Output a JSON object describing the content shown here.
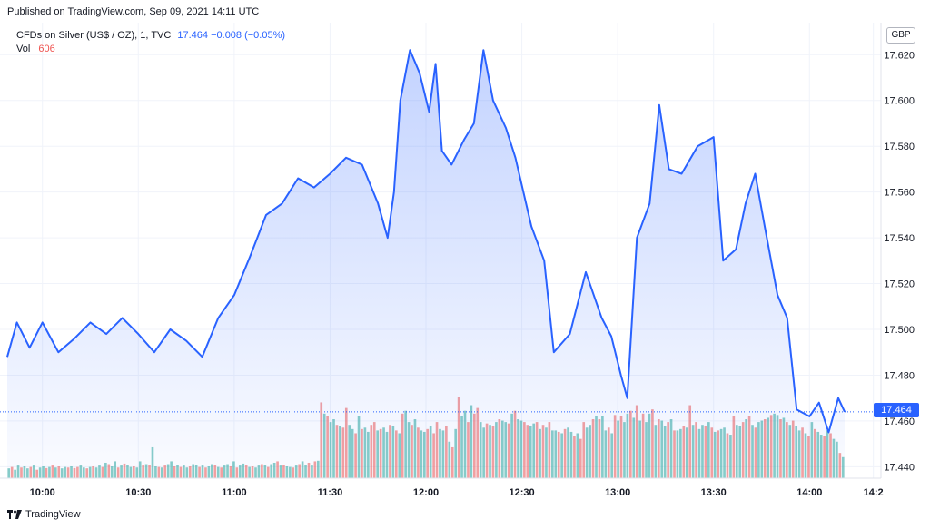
{
  "header": {
    "published": "Published on TradingView.com, Sep 09, 2021 14:11 UTC"
  },
  "legend": {
    "symbol": "CFDs on Silver (US$ / OZ), 1, TVC",
    "values": "17.464  −0.008 (−0.05%)",
    "vol_label": "Vol",
    "vol_value": "606"
  },
  "currency_badge": "GBP",
  "last_price_label": "17.464",
  "footer": {
    "brand": "TradingView"
  },
  "colors": {
    "line": "#2962ff",
    "area": "#2962ff",
    "vol_up": "#26a69a",
    "vol_down": "#ef5350",
    "grid": "#f0f3fa"
  },
  "chart_data": {
    "type": "area",
    "y_ticks": [
      "17.620",
      "17.600",
      "17.580",
      "17.560",
      "17.540",
      "17.520",
      "17.500",
      "17.480",
      "17.460",
      "17.440"
    ],
    "x_ticks": [
      "10:00",
      "10:30",
      "11:00",
      "11:30",
      "12:00",
      "12:30",
      "13:00",
      "13:30",
      "14:00",
      "14:2"
    ],
    "ylim": [
      17.435,
      17.632
    ],
    "last_price": 17.464,
    "series": [
      {
        "x": [
          "09:49",
          "09:52",
          "09:56",
          "10:00",
          "10:05",
          "10:10",
          "10:15",
          "10:20",
          "10:25",
          "10:30",
          "10:35",
          "10:40",
          "10:45",
          "10:50",
          "10:55",
          "11:00",
          "11:05",
          "11:10",
          "11:15",
          "11:20",
          "11:25",
          "11:30",
          "11:35",
          "11:40",
          "11:45",
          "11:48",
          "11:50",
          "11:52",
          "11:55",
          "11:58",
          "12:01",
          "12:03",
          "12:05",
          "12:08",
          "12:12",
          "12:15",
          "12:18",
          "12:21",
          "12:25",
          "12:28",
          "12:33",
          "12:37",
          "12:40",
          "12:45",
          "12:50",
          "12:55",
          "12:58",
          "13:01",
          "13:03",
          "13:06",
          "13:10",
          "13:13",
          "13:16",
          "13:20",
          "13:25",
          "13:30",
          "13:33",
          "13:37",
          "13:40",
          "13:43",
          "13:46",
          "13:50",
          "13:53",
          "13:56",
          "14:00",
          "14:03",
          "14:06",
          "14:09",
          "14:11"
        ],
        "values": [
          17.488,
          17.503,
          17.492,
          17.503,
          17.49,
          17.496,
          17.503,
          17.498,
          17.505,
          17.498,
          17.49,
          17.5,
          17.495,
          17.488,
          17.505,
          17.515,
          17.532,
          17.55,
          17.555,
          17.566,
          17.562,
          17.568,
          17.575,
          17.572,
          17.555,
          17.54,
          17.56,
          17.6,
          17.622,
          17.612,
          17.595,
          17.616,
          17.578,
          17.572,
          17.583,
          17.59,
          17.622,
          17.6,
          17.588,
          17.575,
          17.545,
          17.53,
          17.49,
          17.498,
          17.525,
          17.505,
          17.497,
          17.48,
          17.47,
          17.54,
          17.555,
          17.598,
          17.57,
          17.568,
          17.58,
          17.584,
          17.53,
          17.535,
          17.555,
          17.568,
          17.545,
          17.515,
          17.505,
          17.465,
          17.462,
          17.468,
          17.455,
          17.47,
          17.464
        ]
      }
    ],
    "volume": {
      "label": "Vol",
      "scale_max": 420,
      "values": [
        35,
        40,
        30,
        45,
        38,
        42,
        35,
        40,
        45,
        30,
        38,
        42,
        36,
        40,
        45,
        38,
        42,
        35,
        40,
        38,
        42,
        36,
        40,
        45,
        38,
        35,
        40,
        42,
        38,
        45,
        40,
        55,
        50,
        42,
        60,
        38,
        45,
        52,
        48,
        40,
        42,
        38,
        60,
        45,
        50,
        48,
        110,
        42,
        40,
        38,
        45,
        50,
        60,
        42,
        48,
        40,
        45,
        38,
        42,
        50,
        48,
        40,
        45,
        38,
        42,
        50,
        48,
        40,
        38,
        45,
        50,
        42,
        60,
        38,
        45,
        52,
        48,
        40,
        42,
        38,
        45,
        50,
        48,
        40,
        50,
        55,
        60,
        45,
        48,
        42,
        40,
        38,
        45,
        50,
        60,
        48,
        55,
        45,
        60,
        62,
        270,
        230,
        220,
        200,
        210,
        190,
        185,
        180,
        250,
        190,
        175,
        160,
        220,
        175,
        180,
        165,
        190,
        200,
        170,
        175,
        180,
        165,
        190,
        185,
        170,
        160,
        230,
        240,
        200,
        190,
        210,
        180,
        170,
        165,
        175,
        185,
        160,
        200,
        175,
        170,
        185,
        130,
        110,
        175,
        290,
        220,
        240,
        200,
        260,
        230,
        250,
        200,
        180,
        195,
        190,
        185,
        200,
        210,
        205,
        200,
        195,
        230,
        240,
        210,
        205,
        200,
        190,
        185,
        195,
        200,
        175,
        190,
        180,
        200,
        170,
        170,
        165,
        160,
        175,
        180,
        165,
        150,
        160,
        140,
        200,
        180,
        190,
        210,
        220,
        210,
        220,
        170,
        180,
        160,
        225,
        205,
        220,
        200,
        230,
        240,
        215,
        260,
        205,
        230,
        200,
        230,
        245,
        190,
        210,
        205,
        185,
        200,
        210,
        170,
        170,
        175,
        185,
        180,
        260,
        190,
        200,
        175,
        190,
        185,
        200,
        180,
        165,
        170,
        175,
        180,
        160,
        155,
        220,
        190,
        185,
        200,
        210,
        220,
        190,
        180,
        200,
        205,
        210,
        215,
        225,
        230,
        225,
        210,
        215,
        200,
        190,
        205,
        185,
        170,
        180,
        160,
        150,
        200,
        175,
        165,
        155,
        150,
        170,
        160,
        140,
        130,
        90,
        75
      ],
      "up": [
        1,
        0,
        1,
        1,
        0,
        1,
        1,
        0,
        1,
        0,
        1,
        1,
        0,
        1,
        0,
        1,
        0,
        1,
        1,
        0,
        1,
        0,
        0,
        1,
        1,
        0,
        1,
        0,
        1,
        1,
        0,
        1,
        0,
        1,
        1,
        0,
        1,
        0,
        1,
        1,
        0,
        1,
        1,
        0,
        1,
        0,
        1,
        1,
        0,
        1,
        0,
        1,
        1,
        0,
        1,
        0,
        1,
        1,
        0,
        1,
        1,
        0,
        1,
        0,
        1,
        1,
        0,
        1,
        0,
        1,
        1,
        0,
        1,
        0,
        1,
        1,
        0,
        1,
        0,
        1,
        1,
        0,
        1,
        0,
        1,
        1,
        0,
        1,
        0,
        1,
        1,
        0,
        1,
        0,
        1,
        1,
        0,
        1,
        0,
        1,
        0,
        1,
        0,
        1,
        1,
        0,
        1,
        0,
        0,
        1,
        1,
        0,
        1,
        0,
        1,
        1,
        0,
        0,
        1,
        0,
        1,
        1,
        0,
        1,
        0,
        1,
        0,
        1,
        1,
        0,
        1,
        0,
        1,
        1,
        0,
        1,
        0,
        0,
        1,
        1,
        0,
        1,
        0,
        1,
        0,
        1,
        1,
        0,
        1,
        0,
        0,
        1,
        1,
        0,
        1,
        0,
        1,
        0,
        1,
        1,
        0,
        1,
        0,
        1,
        1,
        0,
        0,
        1,
        1,
        0,
        1,
        0,
        1,
        0,
        1,
        1,
        0,
        1,
        0,
        1,
        1,
        0,
        1,
        0,
        0,
        1,
        1,
        0,
        1,
        0,
        1,
        1,
        0,
        1,
        0,
        1,
        0,
        1,
        1,
        0,
        1,
        0,
        1,
        0,
        1,
        1,
        0,
        1,
        0,
        1,
        1,
        0,
        1,
        0,
        1,
        1,
        0,
        1,
        0,
        1,
        0,
        1,
        1,
        0,
        1,
        0,
        1,
        0,
        1,
        1,
        0,
        1,
        0,
        1,
        1,
        0,
        1,
        0,
        1,
        0,
        1,
        1,
        0,
        1,
        0,
        1,
        1,
        0,
        1,
        0,
        1,
        0,
        1,
        1,
        0,
        1,
        0,
        1,
        0,
        1,
        1,
        0,
        1,
        0,
        1,
        1,
        0,
        1,
        0,
        1,
        0,
        1,
        1,
        0,
        1,
        0
      ]
    }
  }
}
